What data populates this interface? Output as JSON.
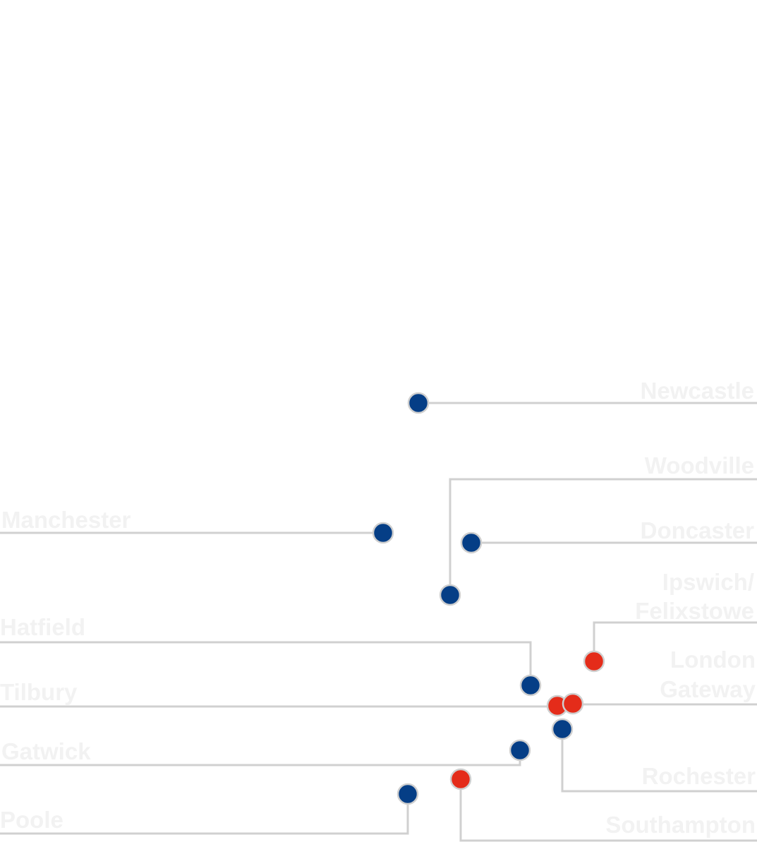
{
  "colors": {
    "label": "#f2f2f2",
    "leader": "#d0d0d0",
    "marker_blue": "#053e86",
    "marker_red": "#e42c1a",
    "background": "#ffffff"
  },
  "markers": [
    {
      "id": "newcastle",
      "color": "marker_blue"
    },
    {
      "id": "woodville",
      "color": "marker_blue"
    },
    {
      "id": "doncaster",
      "color": "marker_blue"
    },
    {
      "id": "manchester",
      "color": "marker_blue"
    },
    {
      "id": "ipswich-felixstowe",
      "color": "marker_red"
    },
    {
      "id": "hatfield",
      "color": "marker_blue"
    },
    {
      "id": "london-gateway",
      "color": "marker_red"
    },
    {
      "id": "tilbury",
      "color": "marker_red"
    },
    {
      "id": "rochester",
      "color": "marker_blue"
    },
    {
      "id": "gatwick",
      "color": "marker_blue"
    },
    {
      "id": "southampton",
      "color": "marker_red"
    },
    {
      "id": "poole",
      "color": "marker_blue"
    }
  ],
  "labels": {
    "newcastle": "Newcastle",
    "woodville": "Woodville",
    "doncaster": "Doncaster",
    "manchester": "Manchester",
    "ipswich_line1": "Ipswich/",
    "ipswich_line2": "Felixstowe",
    "hatfield": "Hatfield",
    "london_line1": "London",
    "london_line2": "Gateway",
    "tilbury": "Tilbury",
    "rochester": "Rochester",
    "gatwick": "Gatwick",
    "southampton": "Southampton",
    "poole": "Poole"
  }
}
